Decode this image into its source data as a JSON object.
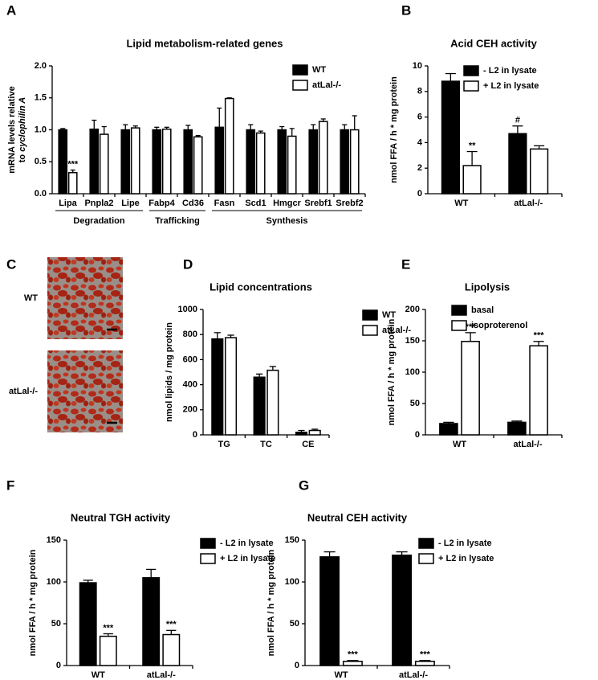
{
  "chart_data": [
    {
      "type": "bar",
      "panel": "A",
      "title": "Lipid metabolism-related genes",
      "ylabel": [
        "mRNA levels relative",
        "to",
        "cyclophilin A"
      ],
      "categories": [
        "Lipa",
        "Pnpla2",
        "Lipe",
        "Fabp4",
        "Cd36",
        "Fasn",
        "Scd1",
        "Hmgcr",
        "Srebf1",
        "Srebf2"
      ],
      "groups": [
        {
          "label": "Degradation",
          "count": 3
        },
        {
          "label": "Trafficking",
          "count": 2
        },
        {
          "label": "Synthesis",
          "count": 5
        }
      ],
      "series": [
        {
          "name": "WT",
          "color": "#000000",
          "values": [
            1.0,
            1.01,
            1.0,
            1.0,
            1.0,
            1.04,
            1.0,
            1.0,
            1.0,
            1.0
          ],
          "errors": [
            0.02,
            0.14,
            0.08,
            0.04,
            0.07,
            0.3,
            0.08,
            0.05,
            0.08,
            0.08
          ],
          "annotations": [
            null,
            null,
            null,
            null,
            null,
            null,
            null,
            null,
            null,
            null
          ]
        },
        {
          "name": "atLal-/-",
          "color": "#ffffff",
          "values": [
            0.33,
            0.93,
            1.03,
            1.01,
            0.89,
            1.49,
            0.95,
            0.9,
            1.13,
            1.0
          ],
          "errors": [
            0.04,
            0.12,
            0.03,
            0.03,
            0.02,
            0.01,
            0.03,
            0.12,
            0.04,
            0.22
          ],
          "annotations": [
            "***",
            null,
            null,
            null,
            null,
            null,
            null,
            null,
            null,
            null
          ]
        }
      ],
      "ylim": [
        0,
        2
      ],
      "yticks": [
        {
          "value": 0,
          "label": "0.0"
        },
        0.5,
        {
          "value": 1,
          "label": "1.0"
        },
        1.5,
        {
          "value": 2,
          "label": "2.0"
        }
      ]
    },
    {
      "type": "bar",
      "panel": "B",
      "title": "Acid CEH activity",
      "ylabel": [
        "nmol FFA / h * mg protein"
      ],
      "categories": [
        "WT",
        "atLal-/-"
      ],
      "series": [
        {
          "name": "- L2 in lysate",
          "color": "#000000",
          "values": [
            8.8,
            4.7
          ],
          "errors": [
            0.6,
            0.6
          ],
          "annotations": [
            null,
            "#"
          ]
        },
        {
          "name": "+ L2 in lysate",
          "color": "#ffffff",
          "values": [
            2.2,
            3.5
          ],
          "errors": [
            1.1,
            0.25
          ],
          "annotations": [
            "**",
            null
          ]
        }
      ],
      "ylim": [
        0,
        10
      ],
      "yticks": [
        0,
        2,
        4,
        6,
        8,
        10
      ]
    },
    {
      "type": "image",
      "panel": "C",
      "labels": [
        "WT",
        "atLal-/-"
      ]
    },
    {
      "type": "bar",
      "panel": "D",
      "title": "Lipid concentrations",
      "ylabel": [
        "nmol lipids / mg protein"
      ],
      "categories": [
        "TG",
        "TC",
        "CE"
      ],
      "series": [
        {
          "name": "WT",
          "color": "#000000",
          "values": [
            765,
            460,
            20
          ],
          "errors": [
            50,
            25,
            15
          ],
          "annotations": [
            null,
            null,
            null
          ]
        },
        {
          "name": "atLal-/-",
          "color": "#ffffff",
          "values": [
            775,
            515,
            35
          ],
          "errors": [
            20,
            30,
            10
          ],
          "annotations": [
            null,
            null,
            null
          ]
        }
      ],
      "ylim": [
        0,
        1000
      ],
      "yticks": [
        0,
        200,
        400,
        600,
        800,
        1000
      ]
    },
    {
      "type": "bar",
      "panel": "E",
      "title": "Lipolysis",
      "ylabel": [
        "nmol FFA / h * mg protein"
      ],
      "categories": [
        "WT",
        "atLal-/-"
      ],
      "series": [
        {
          "name": "basal",
          "color": "#000000",
          "values": [
            18,
            20
          ],
          "errors": [
            2,
            2
          ],
          "annotations": [
            null,
            null
          ]
        },
        {
          "name": "isoproterenol",
          "color": "#ffffff",
          "values": [
            149,
            142
          ],
          "errors": [
            14,
            7
          ],
          "annotations": [
            "***",
            "***"
          ]
        }
      ],
      "ylim": [
        0,
        200
      ],
      "yticks": [
        0,
        50,
        100,
        150,
        200
      ]
    },
    {
      "type": "bar",
      "panel": "F",
      "title": "Neutral TGH activity",
      "ylabel": [
        "nmol FFA / h * mg protein"
      ],
      "categories": [
        "WT",
        "atLal-/-"
      ],
      "series": [
        {
          "name": "- L2 in lysate",
          "color": "#000000",
          "values": [
            99,
            105
          ],
          "errors": [
            3,
            10
          ],
          "annotations": [
            null,
            null
          ]
        },
        {
          "name": "+ L2 in lysate",
          "color": "#ffffff",
          "values": [
            35,
            37
          ],
          "errors": [
            3,
            5
          ],
          "annotations": [
            "***",
            "***"
          ]
        }
      ],
      "ylim": [
        0,
        150
      ],
      "yticks": [
        0,
        50,
        100,
        150
      ]
    },
    {
      "type": "bar",
      "panel": "G",
      "title": "Neutral CEH activity",
      "ylabel": [
        "nmol FFA / h * mg protein"
      ],
      "categories": [
        "WT",
        "atLal-/-"
      ],
      "series": [
        {
          "name": "- L2 in lysate",
          "color": "#000000",
          "values": [
            130,
            132
          ],
          "errors": [
            6,
            4
          ],
          "annotations": [
            null,
            null
          ]
        },
        {
          "name": "+ L2 in lysate",
          "color": "#ffffff",
          "values": [
            5,
            5
          ],
          "errors": [
            1,
            1
          ],
          "annotations": [
            "***",
            "***"
          ]
        }
      ],
      "ylim": [
        0,
        150
      ],
      "yticks": [
        0,
        50,
        100,
        150
      ]
    }
  ]
}
